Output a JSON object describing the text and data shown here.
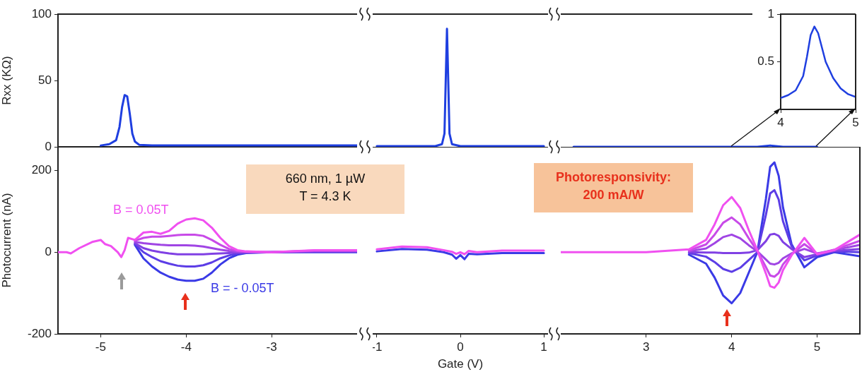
{
  "chart_data": [
    {
      "type": "line",
      "ylabel": "Rxx (KΩ)",
      "xlim": [
        -5.5,
        -2.0
      ],
      "xticks": [
        -5,
        -4,
        -3
      ],
      "ylim": [
        0,
        100
      ],
      "yticks": [
        0,
        50,
        100
      ],
      "tick_labels": "y",
      "series": [
        {
          "color": "#1f3fe0",
          "x": [
            -5.0,
            -4.9,
            -4.82,
            -4.78,
            -4.75,
            -4.72,
            -4.69,
            -4.66,
            -4.63,
            -4.6,
            -4.55,
            -4.4,
            -2.0
          ],
          "values": [
            1,
            2,
            5,
            15,
            30,
            39,
            38,
            25,
            10,
            4,
            1.5,
            1,
            1
          ]
        }
      ]
    },
    {
      "type": "line",
      "xlim": [
        -1.05,
        1.05
      ],
      "xticks": [
        -1,
        0,
        1
      ],
      "ylim": [
        0,
        100
      ],
      "yticks": [
        0,
        50,
        100
      ],
      "tick_labels": false,
      "series": [
        {
          "color": "#1f3fe0",
          "x": [
            -1.0,
            -0.3,
            -0.22,
            -0.19,
            -0.175,
            -0.16,
            -0.145,
            -0.13,
            -0.1,
            0,
            1.0
          ],
          "values": [
            0.5,
            0.5,
            2,
            10,
            50,
            89,
            50,
            10,
            2,
            0.5,
            0.5
          ]
        }
      ]
    },
    {
      "type": "line",
      "xlim": [
        2.0,
        5.5
      ],
      "xticks": [
        3,
        4,
        5
      ],
      "ylim": [
        0,
        100
      ],
      "yticks": [
        0,
        50,
        100
      ],
      "tick_labels": false,
      "series": [
        {
          "color": "#1f3fe0",
          "x": [
            2.15,
            3.0,
            4.0,
            4.3,
            4.45,
            4.6,
            5.0
          ],
          "values": [
            0,
            0,
            0,
            0,
            1,
            0,
            0
          ]
        }
      ]
    },
    {
      "type": "line",
      "ylabel": "Photocurrent (nA)",
      "xlim": [
        -5.5,
        -2.0
      ],
      "xticks": [
        -5,
        -4,
        -3
      ],
      "ylim": [
        -200,
        258
      ],
      "yticks": [
        -200,
        0,
        200
      ],
      "annotations": [
        "660 nm, 1 µW\nT = 4.3 K"
      ],
      "x": [
        -5.5,
        -5.4,
        -5.35,
        -5.25,
        -5.1,
        -5.0,
        -4.95,
        -4.88,
        -4.8,
        -4.76,
        -4.72,
        -4.68,
        -4.6,
        -4.5,
        -4.4,
        -4.3,
        -4.2,
        -4.1,
        -4.0,
        -3.9,
        -3.8,
        -3.7,
        -3.6,
        -3.5,
        -3.4,
        -3.3,
        -3.0,
        -2.5,
        -2.0
      ],
      "series": [
        {
          "name": "B = - 0.05T",
          "color": "#3a3ae6",
          "values": [
            null,
            null,
            null,
            null,
            null,
            null,
            null,
            null,
            null,
            null,
            null,
            null,
            18,
            -15,
            -35,
            -50,
            -60,
            -67,
            -70,
            -70,
            -65,
            -50,
            -30,
            -15,
            -6,
            -2,
            0,
            0,
            0
          ]
        },
        {
          "color": "#5c3de6",
          "values": [
            null,
            null,
            null,
            null,
            null,
            null,
            null,
            null,
            null,
            null,
            null,
            null,
            20,
            0,
            -12,
            -22,
            -28,
            -33,
            -35,
            -35,
            -32,
            -25,
            -15,
            -8,
            -3,
            -1,
            0,
            1,
            1
          ]
        },
        {
          "color": "#8040e4",
          "values": [
            null,
            null,
            null,
            null,
            null,
            null,
            null,
            null,
            null,
            null,
            null,
            null,
            22,
            10,
            4,
            0,
            -3,
            -5,
            -5,
            -5,
            -5,
            -4,
            -3,
            -2,
            -1,
            0,
            0,
            2,
            2
          ]
        },
        {
          "color": "#a045e4",
          "values": [
            null,
            null,
            null,
            null,
            null,
            null,
            null,
            null,
            null,
            null,
            null,
            null,
            25,
            22,
            20,
            18,
            17,
            17,
            17,
            16,
            14,
            10,
            6,
            3,
            1,
            0,
            0,
            3,
            3
          ]
        },
        {
          "color": "#c84ae8",
          "values": [
            null,
            null,
            null,
            null,
            null,
            null,
            null,
            null,
            null,
            null,
            null,
            null,
            28,
            35,
            38,
            38,
            40,
            42,
            43,
            43,
            40,
            30,
            18,
            8,
            3,
            1,
            0,
            4,
            4
          ]
        },
        {
          "name": "B = 0.05T",
          "color": "#f050f0",
          "values": [
            0,
            0,
            -3,
            10,
            25,
            30,
            20,
            15,
            0,
            -12,
            5,
            35,
            30,
            48,
            50,
            45,
            52,
            70,
            80,
            83,
            78,
            60,
            35,
            15,
            5,
            2,
            0,
            5,
            5
          ]
        }
      ]
    },
    {
      "type": "line",
      "xlabel": "Gate (V)",
      "xlim": [
        -1.05,
        1.05
      ],
      "xticks": [
        -1,
        0,
        1
      ],
      "ylim": [
        -200,
        258
      ],
      "yticks": [
        -200,
        0,
        200
      ],
      "tick_labels": "x",
      "x": [
        -1.0,
        -0.7,
        -0.4,
        -0.2,
        -0.1,
        -0.05,
        0,
        0.05,
        0.1,
        0.2,
        0.5,
        1.0
      ],
      "series": [
        {
          "color": "#3a3ae6",
          "values": [
            2,
            8,
            6,
            0,
            -6,
            -16,
            -7,
            -17,
            -4,
            -5,
            -2,
            -2
          ]
        },
        {
          "color": "#f050f0",
          "values": [
            7,
            14,
            12,
            5,
            1,
            -4,
            0,
            -5,
            3,
            0,
            4,
            4
          ]
        }
      ]
    },
    {
      "type": "line",
      "xlim": [
        2.0,
        5.5
      ],
      "xticks": [
        3,
        4,
        5
      ],
      "ylim": [
        -200,
        258
      ],
      "yticks": [
        -200,
        0,
        200
      ],
      "tick_labels": "x",
      "annotations": [
        "Photoresponsivity:\n200 mA/W"
      ],
      "x": [
        2.0,
        3.0,
        3.5,
        3.7,
        3.8,
        3.9,
        4.0,
        4.1,
        4.2,
        4.3,
        4.4,
        4.45,
        4.5,
        4.55,
        4.6,
        4.7,
        4.85,
        5.0,
        5.2,
        5.5
      ],
      "series": [
        {
          "color": "#3a3ae6",
          "values": [
            null,
            null,
            -6,
            -28,
            -62,
            -106,
            -125,
            -100,
            -50,
            0,
            130,
            209,
            220,
            187,
            110,
            20,
            -37,
            -12,
            0,
            -10
          ]
        },
        {
          "color": "#5c3de6",
          "values": [
            null,
            null,
            -2,
            -11,
            -24,
            -41,
            -48,
            -38,
            -19,
            0,
            91,
            144,
            152,
            129,
            76,
            15,
            -20,
            -8,
            2,
            0
          ]
        },
        {
          "color": "#8040e4",
          "values": [
            null,
            null,
            0,
            -1,
            -1,
            -2,
            -2,
            -2,
            -1,
            5,
            27,
            43,
            45,
            40,
            25,
            8,
            -12,
            -5,
            3,
            8
          ]
        },
        {
          "color": "#a045e4",
          "values": [
            null,
            null,
            2,
            9,
            22,
            37,
            43,
            34,
            17,
            2,
            -18,
            -28,
            -30,
            -26,
            -15,
            -3,
            8,
            -3,
            5,
            18
          ]
        },
        {
          "color": "#c84ae8",
          "values": [
            null,
            null,
            4,
            19,
            43,
            72,
            85,
            68,
            34,
            3,
            -36,
            -57,
            -60,
            -51,
            -30,
            -5,
            20,
            -4,
            6,
            28
          ]
        },
        {
          "color": "#f050f0",
          "values": [
            0,
            0,
            7,
            30,
            68,
            115,
            135,
            108,
            54,
            5,
            -52,
            -83,
            -87,
            -74,
            -44,
            -8,
            35,
            -5,
            5,
            43
          ]
        }
      ]
    },
    {
      "type": "line",
      "xlim": [
        4,
        5
      ],
      "xticks": [
        4,
        5
      ],
      "ylim": [
        0,
        1
      ],
      "yticks": [
        0.5,
        1
      ],
      "series": [
        {
          "color": "#1f3fe0",
          "x": [
            4.0,
            4.1,
            4.2,
            4.3,
            4.35,
            4.4,
            4.45,
            4.5,
            4.55,
            4.6,
            4.7,
            4.8,
            4.9,
            5.0
          ],
          "values": [
            0.12,
            0.15,
            0.2,
            0.35,
            0.55,
            0.78,
            0.87,
            0.8,
            0.65,
            0.5,
            0.33,
            0.22,
            0.16,
            0.13
          ]
        }
      ]
    }
  ]
}
